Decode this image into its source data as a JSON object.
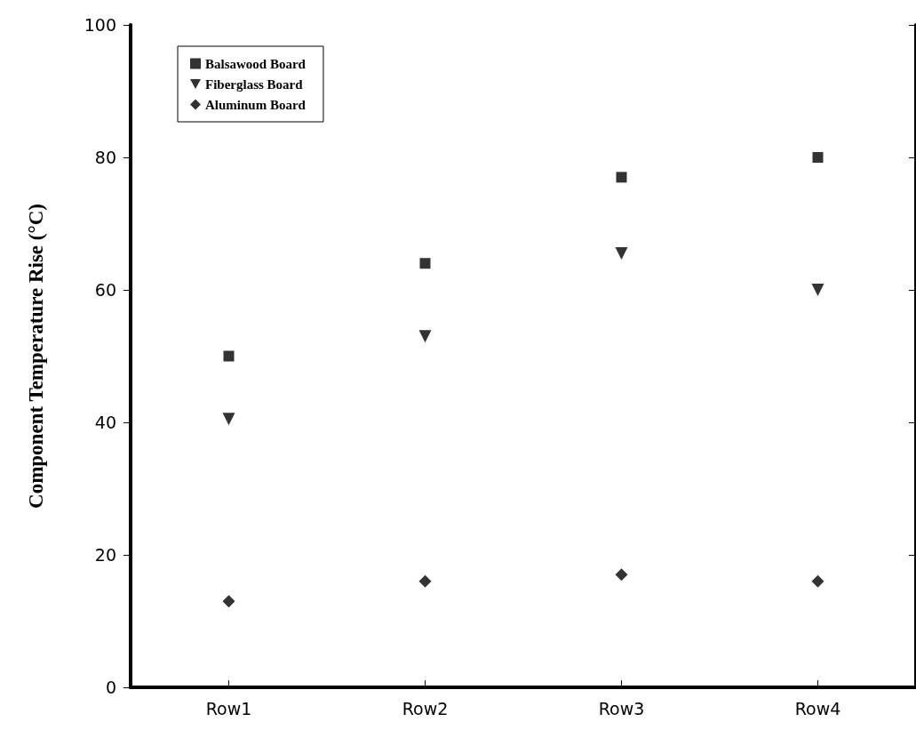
{
  "chart_data": {
    "type": "scatter",
    "ylabel": "Component Temperature Rise (°C)",
    "categories": [
      "Row1",
      "Row2",
      "Row3",
      "Row4"
    ],
    "series": [
      {
        "name": "Balsawood Board",
        "color": "#000000",
        "marker": "square",
        "values": [
          50,
          64,
          77,
          80
        ]
      },
      {
        "name": "Fiberglass Board",
        "color": "#000000",
        "marker": "triangle",
        "values": [
          40.5,
          53,
          65.5,
          60
        ]
      },
      {
        "name": "Aluminum Board",
        "color": "#000000",
        "marker": "diamond",
        "values": [
          13,
          16,
          17,
          16
        ]
      }
    ],
    "ylim": [
      0,
      100
    ],
    "yticks": [
      0,
      20,
      40,
      60,
      80,
      100
    ],
    "grid": false,
    "legend": "top left"
  }
}
